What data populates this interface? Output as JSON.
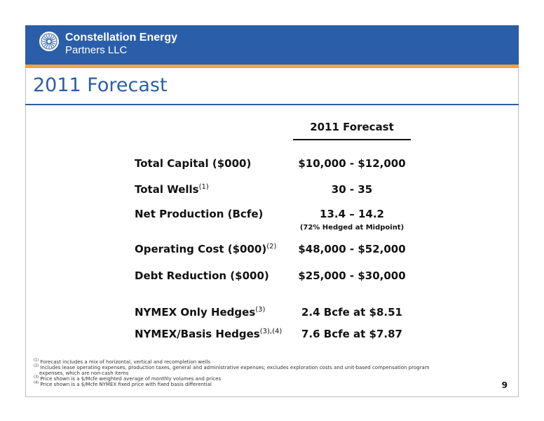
{
  "header": {
    "logo_line1": "Constellation Energy",
    "logo_line2": "Partners LLC",
    "brand_color": "#2b5ea8",
    "accent_color": "#f2a33a"
  },
  "title": "2011 Forecast",
  "table": {
    "column_header": "2011 Forecast",
    "rows": [
      {
        "label": "Total Capital ($000)",
        "sup": "",
        "value": "$10,000 - $12,000",
        "note": ""
      },
      {
        "label": "Total Wells",
        "sup": "(1)",
        "value": "30 - 35",
        "note": ""
      },
      {
        "label": "Net Production (Bcfe)",
        "sup": "",
        "value": "13.4 – 14.2",
        "note": "(72% Hedged at Midpoint)"
      },
      {
        "label": "Operating Cost ($000)",
        "sup": "(2)",
        "value": "$48,000 - $52,000",
        "note": ""
      },
      {
        "label": "Debt Reduction ($000)",
        "sup": "",
        "value": "$25,000 - $30,000",
        "note": ""
      },
      {
        "label": "NYMEX Only Hedges",
        "sup": "(3)",
        "value": "2.4 Bcfe at $8.51",
        "note": ""
      },
      {
        "label": "NYMEX/Basis Hedges",
        "sup": "(3),(4)",
        "value": "7.6 Bcfe at $7.87",
        "note": ""
      }
    ]
  },
  "footnotes": [
    {
      "mark": "(1)",
      "text": "Forecast includes a mix of horizontal, vertical and recompletion wells"
    },
    {
      "mark": "(2)",
      "text": "Includes lease operating expenses, production taxes, general and administrative expenses; excludes exploration costs and unit-based compensation program"
    },
    {
      "mark": "",
      "text": "expenses, which are non-cash items"
    },
    {
      "mark": "(3)",
      "text": "Price shown is a $/Mcfe weighted average of monthly volumes and prices"
    },
    {
      "mark": "(4)",
      "text": "Price shown is a $/Mcfe NYMEX fixed price with fixed basis differential"
    }
  ],
  "page_number": "9"
}
